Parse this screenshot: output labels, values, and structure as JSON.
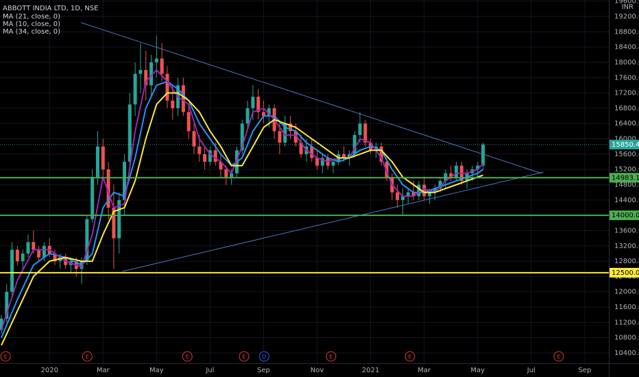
{
  "chart_data": {
    "type": "candlestick",
    "title": "ABBOTT INDIA LTD, 1D, NSE",
    "currency": "INR",
    "xlim": [
      -1.85,
      20.9
    ],
    "xticks": [
      {
        "value": 0,
        "label": "2020"
      },
      {
        "value": 2,
        "label": "Mar"
      },
      {
        "value": 4,
        "label": "May"
      },
      {
        "value": 6,
        "label": "Jul"
      },
      {
        "value": 8,
        "label": "Sep"
      },
      {
        "value": 10,
        "label": "Nov"
      },
      {
        "value": 12,
        "label": "2021"
      },
      {
        "value": 14,
        "label": "Mar"
      },
      {
        "value": 16,
        "label": "May"
      },
      {
        "value": 18,
        "label": "Jul"
      },
      {
        "value": 20,
        "label": "Sep"
      }
    ],
    "ylim": [
      10230,
      19600
    ],
    "yticks": [
      {
        "value": 10400,
        "label": "10400.00"
      },
      {
        "value": 10800,
        "label": "10800.00"
      },
      {
        "value": 11200,
        "label": "11200.00"
      },
      {
        "value": 11600,
        "label": "11600.00"
      },
      {
        "value": 12000,
        "label": "12000.00"
      },
      {
        "value": 12400,
        "label": "12400.00"
      },
      {
        "value": 12800,
        "label": "12800.00"
      },
      {
        "value": 13200,
        "label": "13200.00"
      },
      {
        "value": 13600,
        "label": "13600.00"
      },
      {
        "value": 14000,
        "label": "14000.00"
      },
      {
        "value": 14400,
        "label": "14400.00"
      },
      {
        "value": 14800,
        "label": "14800.00"
      },
      {
        "value": 15200,
        "label": "15200.00"
      },
      {
        "value": 15600,
        "label": "15600.00"
      },
      {
        "value": 16000,
        "label": "16000.00"
      },
      {
        "value": 16400,
        "label": "16400.00"
      },
      {
        "value": 16800,
        "label": "16800.00"
      },
      {
        "value": 17200,
        "label": "17200.00"
      },
      {
        "value": 17600,
        "label": "17600.00"
      },
      {
        "value": 18000,
        "label": "18000.00"
      },
      {
        "value": 18400,
        "label": "18400.00"
      },
      {
        "value": 18800,
        "label": "18800.00"
      },
      {
        "value": 19200,
        "label": "19200.00"
      },
      {
        "value": 19600,
        "label": "19600.00"
      }
    ],
    "up_color": "#26a69a",
    "down_color": "#ef5350",
    "candles": [
      {
        "x": -1.8,
        "o": 11000,
        "h": 11400,
        "l": 10900,
        "c": 11300
      },
      {
        "x": -1.6,
        "o": 11300,
        "h": 12200,
        "l": 11200,
        "c": 12000
      },
      {
        "x": -1.4,
        "o": 12000,
        "h": 13300,
        "l": 11900,
        "c": 13100
      },
      {
        "x": -1.2,
        "o": 13100,
        "h": 13200,
        "l": 12700,
        "c": 12800
      },
      {
        "x": -1.0,
        "o": 12800,
        "h": 13100,
        "l": 12600,
        "c": 13000
      },
      {
        "x": -0.8,
        "o": 13000,
        "h": 13500,
        "l": 12900,
        "c": 13300
      },
      {
        "x": -0.6,
        "o": 13300,
        "h": 13600,
        "l": 13000,
        "c": 13100
      },
      {
        "x": -0.4,
        "o": 13100,
        "h": 13200,
        "l": 12800,
        "c": 12900
      },
      {
        "x": -0.2,
        "o": 12900,
        "h": 13300,
        "l": 12800,
        "c": 13200
      },
      {
        "x": 0.0,
        "o": 13200,
        "h": 13400,
        "l": 12900,
        "c": 13000
      },
      {
        "x": 0.2,
        "o": 13000,
        "h": 13100,
        "l": 12700,
        "c": 12800
      },
      {
        "x": 0.4,
        "o": 12800,
        "h": 13000,
        "l": 12600,
        "c": 12900
      },
      {
        "x": 0.6,
        "o": 12900,
        "h": 13000,
        "l": 12600,
        "c": 12700
      },
      {
        "x": 0.8,
        "o": 12700,
        "h": 12900,
        "l": 12500,
        "c": 12800
      },
      {
        "x": 1.0,
        "o": 12800,
        "h": 12900,
        "l": 12400,
        "c": 12600
      },
      {
        "x": 1.2,
        "o": 12600,
        "h": 12900,
        "l": 12200,
        "c": 12800
      },
      {
        "x": 1.4,
        "o": 12800,
        "h": 14000,
        "l": 12700,
        "c": 13900
      },
      {
        "x": 1.6,
        "o": 13900,
        "h": 15200,
        "l": 13800,
        "c": 15000
      },
      {
        "x": 1.8,
        "o": 15000,
        "h": 16200,
        "l": 14800,
        "c": 15800
      },
      {
        "x": 2.0,
        "o": 15800,
        "h": 16000,
        "l": 14900,
        "c": 15200
      },
      {
        "x": 2.2,
        "o": 15200,
        "h": 15400,
        "l": 13900,
        "c": 14200
      },
      {
        "x": 2.4,
        "o": 14200,
        "h": 14800,
        "l": 12600,
        "c": 13400
      },
      {
        "x": 2.6,
        "o": 13400,
        "h": 14600,
        "l": 13000,
        "c": 14400
      },
      {
        "x": 2.8,
        "o": 14400,
        "h": 15600,
        "l": 14000,
        "c": 15400
      },
      {
        "x": 3.0,
        "o": 15400,
        "h": 17200,
        "l": 15200,
        "c": 16900
      },
      {
        "x": 3.2,
        "o": 16900,
        "h": 18000,
        "l": 16600,
        "c": 17700
      },
      {
        "x": 3.4,
        "o": 17700,
        "h": 18500,
        "l": 17200,
        "c": 17800
      },
      {
        "x": 3.6,
        "o": 17800,
        "h": 18300,
        "l": 17000,
        "c": 17400
      },
      {
        "x": 3.8,
        "o": 17400,
        "h": 18200,
        "l": 17100,
        "c": 18000
      },
      {
        "x": 4.0,
        "o": 18000,
        "h": 18700,
        "l": 17600,
        "c": 18100
      },
      {
        "x": 4.2,
        "o": 18100,
        "h": 18500,
        "l": 17500,
        "c": 17700
      },
      {
        "x": 4.4,
        "o": 17700,
        "h": 17900,
        "l": 16800,
        "c": 17000
      },
      {
        "x": 4.6,
        "o": 17000,
        "h": 17400,
        "l": 16500,
        "c": 16800
      },
      {
        "x": 4.8,
        "o": 16800,
        "h": 17600,
        "l": 16600,
        "c": 17400
      },
      {
        "x": 5.0,
        "o": 17400,
        "h": 17600,
        "l": 16600,
        "c": 16700
      },
      {
        "x": 5.2,
        "o": 16700,
        "h": 16900,
        "l": 16000,
        "c": 16200
      },
      {
        "x": 5.4,
        "o": 16200,
        "h": 16400,
        "l": 15600,
        "c": 15800
      },
      {
        "x": 5.6,
        "o": 15800,
        "h": 16100,
        "l": 15400,
        "c": 15600
      },
      {
        "x": 5.8,
        "o": 15600,
        "h": 15800,
        "l": 15200,
        "c": 15400
      },
      {
        "x": 6.0,
        "o": 15400,
        "h": 15800,
        "l": 15300,
        "c": 15700
      },
      {
        "x": 6.2,
        "o": 15700,
        "h": 15900,
        "l": 15300,
        "c": 15400
      },
      {
        "x": 6.4,
        "o": 15400,
        "h": 15600,
        "l": 15000,
        "c": 15200
      },
      {
        "x": 6.6,
        "o": 15200,
        "h": 15300,
        "l": 14800,
        "c": 15000
      },
      {
        "x": 6.8,
        "o": 15000,
        "h": 15200,
        "l": 14800,
        "c": 15100
      },
      {
        "x": 7.0,
        "o": 15100,
        "h": 15800,
        "l": 15000,
        "c": 15700
      },
      {
        "x": 7.2,
        "o": 15700,
        "h": 16500,
        "l": 15600,
        "c": 16400
      },
      {
        "x": 7.4,
        "o": 16400,
        "h": 17000,
        "l": 16200,
        "c": 16800
      },
      {
        "x": 7.6,
        "o": 16800,
        "h": 17400,
        "l": 16500,
        "c": 17100
      },
      {
        "x": 7.8,
        "o": 17100,
        "h": 17300,
        "l": 16500,
        "c": 16700
      },
      {
        "x": 8.0,
        "o": 16700,
        "h": 17000,
        "l": 16400,
        "c": 16600
      },
      {
        "x": 8.2,
        "o": 16600,
        "h": 16900,
        "l": 16300,
        "c": 16800
      },
      {
        "x": 8.4,
        "o": 16800,
        "h": 16900,
        "l": 16000,
        "c": 16200
      },
      {
        "x": 8.6,
        "o": 16200,
        "h": 16500,
        "l": 15600,
        "c": 15900
      },
      {
        "x": 8.8,
        "o": 15900,
        "h": 16600,
        "l": 15800,
        "c": 16400
      },
      {
        "x": 9.0,
        "o": 16400,
        "h": 16600,
        "l": 16000,
        "c": 16200
      },
      {
        "x": 9.2,
        "o": 16200,
        "h": 16400,
        "l": 15800,
        "c": 15900
      },
      {
        "x": 9.4,
        "o": 15900,
        "h": 16100,
        "l": 15500,
        "c": 15600
      },
      {
        "x": 9.6,
        "o": 15600,
        "h": 16000,
        "l": 15400,
        "c": 15800
      },
      {
        "x": 9.8,
        "o": 15800,
        "h": 16000,
        "l": 15400,
        "c": 15500
      },
      {
        "x": 10.0,
        "o": 15500,
        "h": 15700,
        "l": 15200,
        "c": 15300
      },
      {
        "x": 10.2,
        "o": 15300,
        "h": 15600,
        "l": 15100,
        "c": 15500
      },
      {
        "x": 10.4,
        "o": 15500,
        "h": 15600,
        "l": 15200,
        "c": 15300
      },
      {
        "x": 10.6,
        "o": 15300,
        "h": 15500,
        "l": 15100,
        "c": 15400
      },
      {
        "x": 10.8,
        "o": 15400,
        "h": 15700,
        "l": 15300,
        "c": 15600
      },
      {
        "x": 11.0,
        "o": 15600,
        "h": 15800,
        "l": 15400,
        "c": 15500
      },
      {
        "x": 11.2,
        "o": 15500,
        "h": 15700,
        "l": 15300,
        "c": 15600
      },
      {
        "x": 11.4,
        "o": 15600,
        "h": 16200,
        "l": 15500,
        "c": 16100
      },
      {
        "x": 11.6,
        "o": 16100,
        "h": 16700,
        "l": 15900,
        "c": 16400
      },
      {
        "x": 11.8,
        "o": 16400,
        "h": 16500,
        "l": 15800,
        "c": 15900
      },
      {
        "x": 12.0,
        "o": 15900,
        "h": 16000,
        "l": 15600,
        "c": 15700
      },
      {
        "x": 12.2,
        "o": 15700,
        "h": 15900,
        "l": 15500,
        "c": 15800
      },
      {
        "x": 12.4,
        "o": 15800,
        "h": 15900,
        "l": 15300,
        "c": 15400
      },
      {
        "x": 12.6,
        "o": 15400,
        "h": 15500,
        "l": 14900,
        "c": 15000
      },
      {
        "x": 12.8,
        "o": 15000,
        "h": 15100,
        "l": 14400,
        "c": 14600
      },
      {
        "x": 13.0,
        "o": 14600,
        "h": 14800,
        "l": 14200,
        "c": 14400
      },
      {
        "x": 13.2,
        "o": 14400,
        "h": 14700,
        "l": 14000,
        "c": 14500
      },
      {
        "x": 13.4,
        "o": 14500,
        "h": 14700,
        "l": 14300,
        "c": 14600
      },
      {
        "x": 13.6,
        "o": 14600,
        "h": 14900,
        "l": 14400,
        "c": 14500
      },
      {
        "x": 13.8,
        "o": 14500,
        "h": 14900,
        "l": 14400,
        "c": 14800
      },
      {
        "x": 14.0,
        "o": 14800,
        "h": 15000,
        "l": 14400,
        "c": 14500
      },
      {
        "x": 14.2,
        "o": 14500,
        "h": 14700,
        "l": 14300,
        "c": 14600
      },
      {
        "x": 14.4,
        "o": 14600,
        "h": 14800,
        "l": 14400,
        "c": 14700
      },
      {
        "x": 14.6,
        "o": 14700,
        "h": 15000,
        "l": 14600,
        "c": 14900
      },
      {
        "x": 14.8,
        "o": 14900,
        "h": 15200,
        "l": 14700,
        "c": 15100
      },
      {
        "x": 15.0,
        "o": 15100,
        "h": 15300,
        "l": 14900,
        "c": 15000
      },
      {
        "x": 15.2,
        "o": 15000,
        "h": 15400,
        "l": 14900,
        "c": 15300
      },
      {
        "x": 15.4,
        "o": 15300,
        "h": 15400,
        "l": 14800,
        "c": 14900
      },
      {
        "x": 15.6,
        "o": 14900,
        "h": 15200,
        "l": 14700,
        "c": 15100
      },
      {
        "x": 15.8,
        "o": 15100,
        "h": 15300,
        "l": 14900,
        "c": 15200
      },
      {
        "x": 16.0,
        "o": 15200,
        "h": 15400,
        "l": 15000,
        "c": 15300
      },
      {
        "x": 16.2,
        "o": 15300,
        "h": 15900,
        "l": 15200,
        "c": 15850.4
      }
    ],
    "series": [
      {
        "name": "MA (21, close, 0)",
        "color": "#2196f3",
        "x": [
          -1.8,
          -1.2,
          -0.6,
          0,
          0.6,
          1.2,
          1.6,
          2.0,
          2.4,
          2.8,
          3.2,
          3.6,
          4.0,
          4.4,
          4.8,
          5.2,
          5.6,
          6.0,
          6.4,
          6.8,
          7.2,
          7.6,
          8.0,
          8.4,
          8.8,
          9.2,
          9.6,
          10.0,
          10.4,
          10.8,
          11.2,
          11.6,
          12.0,
          12.4,
          12.8,
          13.2,
          13.6,
          14.0,
          14.4,
          14.8,
          15.2,
          15.6,
          16.0,
          16.2
        ],
        "values": [
          10800,
          11800,
          12700,
          13000,
          12900,
          12700,
          13000,
          14200,
          14600,
          14500,
          15500,
          16800,
          17400,
          17500,
          17300,
          17000,
          16400,
          16000,
          15600,
          15300,
          15500,
          16200,
          16600,
          16600,
          16300,
          16200,
          15900,
          15700,
          15500,
          15400,
          15500,
          15700,
          15800,
          15700,
          15200,
          14800,
          14600,
          14600,
          14700,
          14800,
          14900,
          15000,
          15100,
          15200
        ]
      },
      {
        "name": "MA (10, close, 0)",
        "color": "#9c27b0",
        "x": [
          -1.8,
          -1.2,
          -0.6,
          0,
          0.6,
          1.2,
          1.6,
          2.0,
          2.4,
          2.8,
          3.2,
          3.6,
          4.0,
          4.4,
          4.8,
          5.2,
          5.6,
          6.0,
          6.4,
          6.8,
          7.2,
          7.6,
          8.0,
          8.4,
          8.8,
          9.2,
          9.6,
          10.0,
          10.4,
          10.8,
          11.2,
          11.6,
          12.0,
          12.4,
          12.8,
          13.2,
          13.6,
          14.0,
          14.4,
          14.8,
          15.2,
          15.6,
          16.0,
          16.2
        ],
        "values": [
          11000,
          12300,
          13100,
          13100,
          12800,
          12650,
          13500,
          15000,
          14200,
          14300,
          16200,
          17500,
          17800,
          17500,
          17100,
          16900,
          16000,
          15600,
          15400,
          15100,
          15800,
          16700,
          16800,
          16500,
          16100,
          16100,
          15700,
          15500,
          15400,
          15500,
          15500,
          16000,
          15900,
          15500,
          14800,
          14500,
          14500,
          14700,
          14600,
          14900,
          15100,
          15100,
          15200,
          15350
        ]
      },
      {
        "name": "MA (34, close, 0)",
        "color": "#ffeb3b",
        "x": [
          -1.8,
          -1.2,
          -0.6,
          0,
          0.6,
          1.2,
          1.6,
          2.0,
          2.4,
          2.8,
          3.2,
          3.6,
          4.0,
          4.4,
          4.8,
          5.2,
          5.6,
          6.0,
          6.4,
          6.8,
          7.2,
          7.6,
          8.0,
          8.4,
          8.8,
          9.2,
          9.6,
          10.0,
          10.4,
          10.8,
          11.2,
          11.6,
          12.0,
          12.4,
          12.8,
          13.2,
          13.6,
          14.0,
          14.4,
          14.8,
          15.2,
          15.6,
          16.0,
          16.2
        ],
        "values": [
          10600,
          11500,
          12400,
          12800,
          12900,
          12800,
          12800,
          13500,
          14100,
          14200,
          14900,
          16000,
          16900,
          17200,
          17200,
          17000,
          16700,
          16200,
          15800,
          15300,
          15300,
          15800,
          16300,
          16500,
          16400,
          16300,
          16100,
          15900,
          15700,
          15500,
          15500,
          15600,
          15700,
          15700,
          15400,
          15000,
          14800,
          14600,
          14600,
          14700,
          14800,
          14900,
          15000,
          15050
        ]
      }
    ],
    "trendlines": [
      {
        "color": "#4a78c2",
        "x": [
          1.18,
          18.39
        ],
        "values": [
          19039,
          15096
        ]
      },
      {
        "color": "#4a78c2",
        "x": [
          2.72,
          18.46
        ],
        "values": [
          12533,
          15132
        ]
      }
    ],
    "levels": [
      {
        "value": 14983.15,
        "label": "14983.15",
        "color": "#4caf50"
      },
      {
        "value": 14000,
        "label": "14000.00",
        "color": "#4caf50"
      },
      {
        "value": 12500,
        "label": "12500.00",
        "color": "#ffeb3b"
      }
    ],
    "last_price": {
      "value": 15850.4,
      "label": "15850.40",
      "color": "#26a69a"
    },
    "events": [
      {
        "x": -1.64,
        "label": "E",
        "color": "#e53935"
      },
      {
        "x": 1.41,
        "label": "E",
        "color": "#e53935"
      },
      {
        "x": 5.15,
        "label": "E",
        "color": "#e53935"
      },
      {
        "x": 7.27,
        "label": "E",
        "color": "#e53935"
      },
      {
        "x": 8.02,
        "label": "D",
        "color": "#2962ff"
      },
      {
        "x": 10.52,
        "label": "E",
        "color": "#e53935"
      },
      {
        "x": 13.47,
        "label": "E",
        "color": "#e53935"
      },
      {
        "x": 19.03,
        "label": "E",
        "color": "#e53935"
      }
    ]
  }
}
